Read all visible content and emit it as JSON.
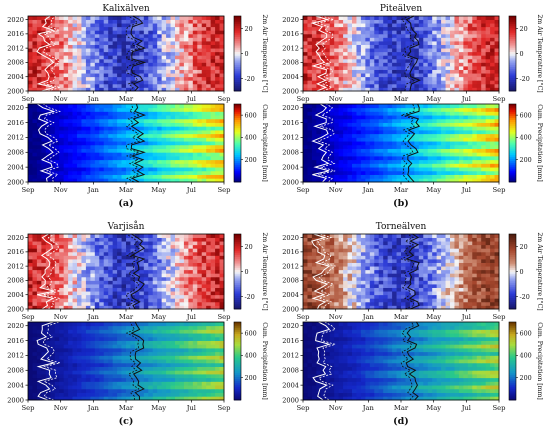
{
  "figure": {
    "panel_letters": [
      "(a)",
      "(b)",
      "(c)",
      "(d)"
    ]
  },
  "chart_data": [
    {
      "type": "heatmap",
      "panel": "(a)",
      "title": "Kalixälven",
      "subplots": [
        {
          "variable": "temperature",
          "ylabel": "2m Air Temperature [°C]",
          "colorbar_ticks": [
            -20,
            0,
            20
          ],
          "colorbar_range": [
            -30,
            30
          ],
          "colormap": "blue-white-red",
          "y_ticks": [
            "2000",
            "2004",
            "2008",
            "2012",
            "2016",
            "2020"
          ],
          "ylim": [
            2000,
            2021
          ],
          "x_ticks": [
            "Sep",
            "Nov",
            "Jan",
            "Mar",
            "May",
            "Jul",
            "Sep"
          ],
          "overlay_lines": [
            "white",
            "black"
          ]
        },
        {
          "variable": "precipitation",
          "ylabel": "Cum. Precipitation [mm]",
          "colorbar_ticks": [
            200,
            400,
            600
          ],
          "colorbar_range": [
            0,
            700
          ],
          "colormap": "jet",
          "y_ticks": [
            "2000",
            "2004",
            "2008",
            "2012",
            "2016",
            "2020"
          ],
          "ylim": [
            2000,
            2021
          ],
          "x_ticks": [
            "Sep",
            "Nov",
            "Jan",
            "Mar",
            "May",
            "Jul",
            "Sep"
          ],
          "overlay_lines": [
            "white",
            "black"
          ]
        }
      ]
    },
    {
      "type": "heatmap",
      "panel": "(b)",
      "title": "Piteälven",
      "subplots": [
        {
          "variable": "temperature",
          "ylabel": "2m Air Temperature [°C]",
          "colorbar_ticks": [
            -20,
            0,
            20
          ],
          "colorbar_range": [
            -30,
            30
          ],
          "colormap": "blue-white-red",
          "y_ticks": [
            "2000",
            "2004",
            "2008",
            "2012",
            "2016",
            "2020"
          ],
          "ylim": [
            2000,
            2021
          ],
          "x_ticks": [
            "Sep",
            "Nov",
            "Jan",
            "Mar",
            "May",
            "Jul",
            "Sep"
          ],
          "overlay_lines": [
            "white",
            "black"
          ]
        },
        {
          "variable": "precipitation",
          "ylabel": "Cum. Precipitation [mm]",
          "colorbar_ticks": [
            200,
            400,
            600
          ],
          "colorbar_range": [
            0,
            700
          ],
          "colormap": "jet",
          "y_ticks": [
            "2000",
            "2004",
            "2008",
            "2012",
            "2016",
            "2020"
          ],
          "ylim": [
            2000,
            2021
          ],
          "x_ticks": [
            "Sep",
            "Nov",
            "Jan",
            "Mar",
            "May",
            "Jul",
            "Sep"
          ],
          "overlay_lines": [
            "white",
            "black"
          ]
        }
      ]
    },
    {
      "type": "heatmap",
      "panel": "(c)",
      "title": "Varjisån",
      "subplots": [
        {
          "variable": "temperature",
          "ylabel": "2m Air Temperature [°C]",
          "colorbar_ticks": [
            -20,
            0,
            20
          ],
          "colorbar_range": [
            -30,
            30
          ],
          "colormap": "blue-white-red",
          "y_ticks": [
            "2000",
            "2004",
            "2008",
            "2012",
            "2016",
            "2020"
          ],
          "ylim": [
            2000,
            2021
          ],
          "x_ticks": [
            "Sep",
            "Nov",
            "Jan",
            "Mar",
            "May",
            "Jul",
            "Sep"
          ],
          "overlay_lines": [
            "white",
            "black"
          ]
        },
        {
          "variable": "precipitation",
          "ylabel": "Cum. Precipitation [mm]",
          "colorbar_ticks": [
            200,
            400,
            600
          ],
          "colorbar_range": [
            0,
            700
          ],
          "colormap": "viridis-like",
          "y_ticks": [
            "2000",
            "2004",
            "2008",
            "2012",
            "2016",
            "2020"
          ],
          "ylim": [
            2000,
            2021
          ],
          "x_ticks": [
            "Sep",
            "Nov",
            "Jan",
            "Mar",
            "May",
            "Jul",
            "Sep"
          ],
          "overlay_lines": [
            "white",
            "black"
          ]
        }
      ]
    },
    {
      "type": "heatmap",
      "panel": "(d)",
      "title": "Torneälven",
      "subplots": [
        {
          "variable": "temperature",
          "ylabel": "2m Air Temperature [°C]",
          "colorbar_ticks": [
            -20,
            0,
            20
          ],
          "colorbar_range": [
            -30,
            30
          ],
          "colormap": "blue-white-brown",
          "y_ticks": [
            "2000",
            "2004",
            "2008",
            "2012",
            "2016",
            "2020"
          ],
          "ylim": [
            2000,
            2021
          ],
          "x_ticks": [
            "Sep",
            "Nov",
            "Jan",
            "Mar",
            "May",
            "Jul",
            "Sep"
          ],
          "overlay_lines": [
            "white",
            "black"
          ]
        },
        {
          "variable": "precipitation",
          "ylabel": "Cum. Precipitation [mm]",
          "colorbar_ticks": [
            200,
            400,
            600
          ],
          "colorbar_range": [
            0,
            700
          ],
          "colormap": "viridis-like",
          "y_ticks": [
            "2000",
            "2004",
            "2008",
            "2012",
            "2016",
            "2020"
          ],
          "ylim": [
            2000,
            2021
          ],
          "x_ticks": [
            "Sep",
            "Nov",
            "Jan",
            "Mar",
            "May",
            "Jul",
            "Sep"
          ],
          "overlay_lines": [
            "white",
            "black"
          ]
        }
      ]
    }
  ]
}
